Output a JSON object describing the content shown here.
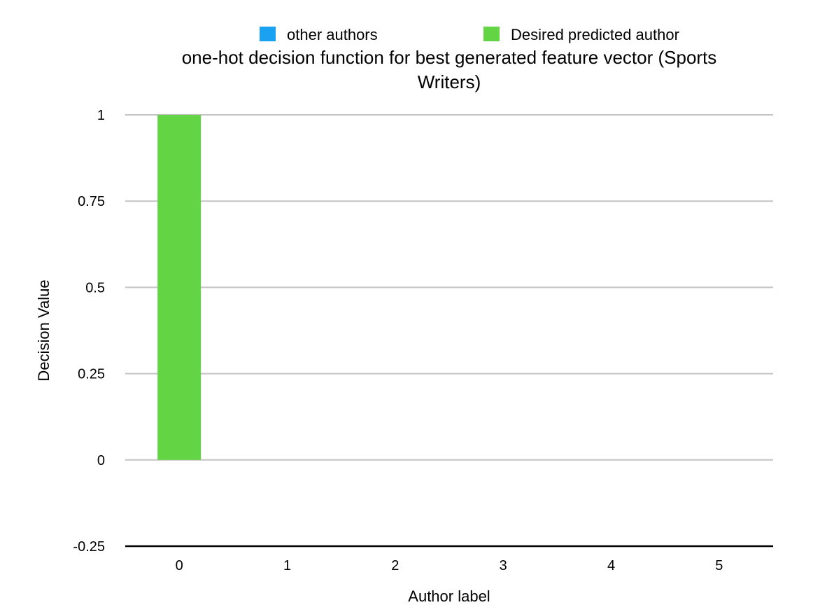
{
  "chart_data": {
    "type": "bar",
    "title_lines": [
      "one-hot decision function for best generated feature vector (Sports",
      "Writers)"
    ],
    "xlabel": "Author label",
    "ylabel": "Decision Value",
    "categories": [
      "0",
      "1",
      "2",
      "3",
      "4",
      "5"
    ],
    "ylim": [
      -0.25,
      1
    ],
    "yticks": [
      -0.25,
      0,
      0.25,
      0.5,
      0.75,
      1
    ],
    "ytick_labels": [
      "-0.25",
      "0",
      "0.25",
      "0.5",
      "0.75",
      "1"
    ],
    "grid": true,
    "legend_position": "top",
    "series": [
      {
        "name": "other authors",
        "color": "#1aa1f2",
        "values": [
          0,
          0,
          0,
          0,
          0,
          0
        ]
      },
      {
        "name": "Desired predicted author",
        "color": "#63d443",
        "values": [
          1,
          0,
          0,
          0,
          0,
          0
        ]
      }
    ]
  }
}
